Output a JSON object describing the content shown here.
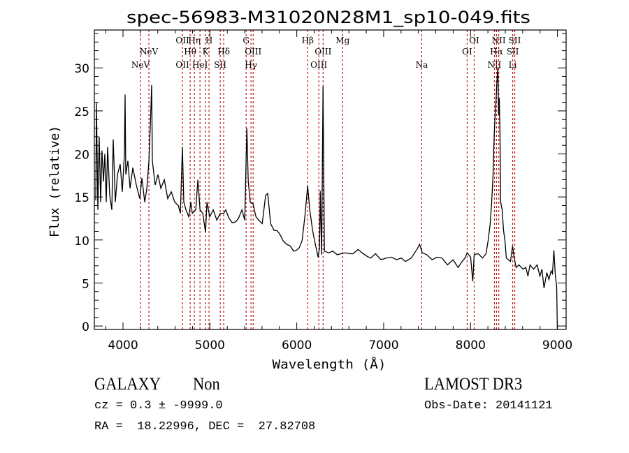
{
  "chart_data": {
    "type": "line",
    "title": "spec-56983-M31020N28M1_sp10-049.fits",
    "xlabel": "Wavelength (Å)",
    "ylabel": "Flux (relative)",
    "xlim": [
      3670,
      9100
    ],
    "ylim": [
      -0.4,
      34.4
    ],
    "xticks": [
      4000,
      5000,
      6000,
      7000,
      8000,
      9000
    ],
    "yticks": [
      0,
      5,
      10,
      15,
      20,
      25,
      30
    ],
    "x_minor_step": 200,
    "y_minor_step": 1,
    "grid": false,
    "line_color": "#000000",
    "marker_color": "#c01818",
    "spectrum": [
      [
        3686,
        14.6
      ],
      [
        3694,
        25.9
      ],
      [
        3710,
        13.5
      ],
      [
        3726,
        22.0
      ],
      [
        3742,
        14.4
      ],
      [
        3758,
        20.4
      ],
      [
        3775,
        16.8
      ],
      [
        3791,
        20.0
      ],
      [
        3807,
        14.4
      ],
      [
        3823,
        20.8
      ],
      [
        3847,
        15.2
      ],
      [
        3871,
        13.5
      ],
      [
        3887,
        21.7
      ],
      [
        3911,
        14.4
      ],
      [
        3936,
        17.6
      ],
      [
        3968,
        18.8
      ],
      [
        3992,
        15.6
      ],
      [
        4016,
        20.0
      ],
      [
        4024,
        26.9
      ],
      [
        4032,
        17.6
      ],
      [
        4056,
        19.2
      ],
      [
        4081,
        16.0
      ],
      [
        4113,
        18.4
      ],
      [
        4153,
        16.4
      ],
      [
        4193,
        14.8
      ],
      [
        4217,
        17.2
      ],
      [
        4250,
        14.4
      ],
      [
        4274,
        16.0
      ],
      [
        4298,
        19.2
      ],
      [
        4314,
        23.3
      ],
      [
        4330,
        28.0
      ],
      [
        4338,
        19.2
      ],
      [
        4370,
        16.4
      ],
      [
        4403,
        17.6
      ],
      [
        4435,
        16.0
      ],
      [
        4475,
        17.0
      ],
      [
        4515,
        14.8
      ],
      [
        4555,
        15.6
      ],
      [
        4596,
        14.4
      ],
      [
        4636,
        14.0
      ],
      [
        4660,
        13.1
      ],
      [
        4684,
        20.8
      ],
      [
        4700,
        14.4
      ],
      [
        4725,
        13.5
      ],
      [
        4757,
        12.7
      ],
      [
        4781,
        14.4
      ],
      [
        4797,
        13.1
      ],
      [
        4837,
        13.5
      ],
      [
        4861,
        17.0
      ],
      [
        4886,
        13.5
      ],
      [
        4918,
        13.1
      ],
      [
        4950,
        10.9
      ],
      [
        4966,
        14.4
      ],
      [
        4998,
        12.7
      ],
      [
        5038,
        13.5
      ],
      [
        5079,
        12.3
      ],
      [
        5119,
        13.1
      ],
      [
        5159,
        13.1
      ],
      [
        5183,
        13.5
      ],
      [
        5216,
        12.6
      ],
      [
        5256,
        12.0
      ],
      [
        5296,
        12.1
      ],
      [
        5328,
        12.5
      ],
      [
        5369,
        13.5
      ],
      [
        5401,
        12.3
      ],
      [
        5425,
        23.0
      ],
      [
        5441,
        16.8
      ],
      [
        5465,
        14.4
      ],
      [
        5497,
        14.2
      ],
      [
        5530,
        12.7
      ],
      [
        5562,
        12.3
      ],
      [
        5602,
        11.9
      ],
      [
        5642,
        15.2
      ],
      [
        5666,
        15.4
      ],
      [
        5699,
        11.9
      ],
      [
        5739,
        11.1
      ],
      [
        5771,
        11.1
      ],
      [
        5803,
        10.7
      ],
      [
        5843,
        9.9
      ],
      [
        5884,
        9.5
      ],
      [
        5924,
        9.3
      ],
      [
        5964,
        8.7
      ],
      [
        5996,
        8.8
      ],
      [
        6029,
        9.1
      ],
      [
        6061,
        9.9
      ],
      [
        6093,
        12.7
      ],
      [
        6125,
        16.3
      ],
      [
        6149,
        13.5
      ],
      [
        6182,
        11.1
      ],
      [
        6214,
        9.5
      ],
      [
        6246,
        8.0
      ],
      [
        6262,
        9.1
      ],
      [
        6270,
        15.7
      ],
      [
        6286,
        8.3
      ],
      [
        6302,
        27.9
      ],
      [
        6318,
        8.7
      ],
      [
        6367,
        8.5
      ],
      [
        6415,
        8.7
      ],
      [
        6463,
        8.3
      ],
      [
        6512,
        8.4
      ],
      [
        6560,
        8.5
      ],
      [
        6608,
        8.4
      ],
      [
        6648,
        8.4
      ],
      [
        6705,
        8.9
      ],
      [
        6753,
        8.5
      ],
      [
        6809,
        8.1
      ],
      [
        6850,
        7.9
      ],
      [
        6906,
        8.4
      ],
      [
        6970,
        7.7
      ],
      [
        7027,
        7.9
      ],
      [
        7091,
        8.0
      ],
      [
        7148,
        7.7
      ],
      [
        7204,
        7.9
      ],
      [
        7252,
        7.5
      ],
      [
        7317,
        7.9
      ],
      [
        7357,
        8.5
      ],
      [
        7389,
        9.0
      ],
      [
        7413,
        9.5
      ],
      [
        7445,
        8.5
      ],
      [
        7494,
        8.3
      ],
      [
        7558,
        7.7
      ],
      [
        7614,
        8.0
      ],
      [
        7671,
        7.9
      ],
      [
        7735,
        7.1
      ],
      [
        7799,
        7.7
      ],
      [
        7856,
        6.8
      ],
      [
        7896,
        7.4
      ],
      [
        7936,
        7.9
      ],
      [
        7961,
        8.5
      ],
      [
        8001,
        8.0
      ],
      [
        8025,
        5.2
      ],
      [
        8042,
        8.3
      ],
      [
        8089,
        8.4
      ],
      [
        8138,
        7.9
      ],
      [
        8178,
        8.4
      ],
      [
        8202,
        9.9
      ],
      [
        8226,
        11.9
      ],
      [
        8243,
        14.4
      ],
      [
        8259,
        17.6
      ],
      [
        8267,
        20.6
      ],
      [
        8275,
        22.7
      ],
      [
        8283,
        24.5
      ],
      [
        8291,
        25.7
      ],
      [
        8299,
        27.3
      ],
      [
        8307,
        29.0
      ],
      [
        8315,
        30.0
      ],
      [
        8323,
        24.5
      ],
      [
        8331,
        26.5
      ],
      [
        8339,
        22.5
      ],
      [
        8347,
        14.4
      ],
      [
        8364,
        13.5
      ],
      [
        8380,
        11.1
      ],
      [
        8396,
        9.9
      ],
      [
        8412,
        7.9
      ],
      [
        8436,
        7.7
      ],
      [
        8460,
        7.5
      ],
      [
        8485,
        9.3
      ],
      [
        8501,
        8.0
      ],
      [
        8525,
        6.8
      ],
      [
        8557,
        7.1
      ],
      [
        8605,
        6.6
      ],
      [
        8637,
        6.8
      ],
      [
        8661,
        5.8
      ],
      [
        8685,
        7.1
      ],
      [
        8725,
        6.6
      ],
      [
        8766,
        7.1
      ],
      [
        8798,
        5.8
      ],
      [
        8822,
        6.6
      ],
      [
        8846,
        4.4
      ],
      [
        8878,
        6.2
      ],
      [
        8902,
        5.4
      ],
      [
        8927,
        6.4
      ],
      [
        8943,
        6.1
      ],
      [
        8959,
        8.8
      ],
      [
        8975,
        6.0
      ],
      [
        8991,
        4.6
      ],
      [
        8999,
        0.0
      ]
    ],
    "line_markers": [
      {
        "label": "NeV",
        "wavelength": 4201,
        "row": 3
      },
      {
        "label": "NeV",
        "wavelength": 4298,
        "row": 2
      },
      {
        "label": "OII",
        "wavelength": 4684,
        "row": 1
      },
      {
        "label": "OII",
        "wavelength": 4684,
        "row": 3
      },
      {
        "label": "Hθ",
        "wavelength": 4773,
        "row": 2
      },
      {
        "label": "Hη",
        "wavelength": 4821,
        "row": 1
      },
      {
        "label": "HeI",
        "wavelength": 4886,
        "row": 3
      },
      {
        "label": "K",
        "wavelength": 4950,
        "row": 2
      },
      {
        "label": "H",
        "wavelength": 4990,
        "row": 1
      },
      {
        "label": "SII",
        "wavelength": 5119,
        "row": 3
      },
      {
        "label": "Hδ",
        "wavelength": 5159,
        "row": 2
      },
      {
        "label": "G",
        "wavelength": 5417,
        "row": 1
      },
      {
        "label": "Hγ",
        "wavelength": 5473,
        "row": 3
      },
      {
        "label": "OIII",
        "wavelength": 5498,
        "row": 2
      },
      {
        "label": "Hβ",
        "wavelength": 6126,
        "row": 1
      },
      {
        "label": "OIII",
        "wavelength": 6254,
        "row": 3
      },
      {
        "label": "OIII",
        "wavelength": 6303,
        "row": 2
      },
      {
        "label": "Mg",
        "wavelength": 6528,
        "row": 1
      },
      {
        "label": "Na",
        "wavelength": 7438,
        "row": 3
      },
      {
        "label": "OI",
        "wavelength": 7961,
        "row": 2
      },
      {
        "label": "OI",
        "wavelength": 8042,
        "row": 1
      },
      {
        "label": "NII",
        "wavelength": 8275,
        "row": 3
      },
      {
        "label": "Hα",
        "wavelength": 8299,
        "row": 2
      },
      {
        "label": "NII",
        "wavelength": 8325,
        "row": 1
      },
      {
        "label": "Li",
        "wavelength": 8485,
        "row": 3
      },
      {
        "label": "SII",
        "wavelength": 8485,
        "row": 2
      },
      {
        "label": "SII",
        "wavelength": 8509,
        "row": 1
      }
    ]
  },
  "info": {
    "class": "GALAXY",
    "subclass": "Non",
    "survey": "LAMOST DR3",
    "cz": "cz = 0.3 ± -9999.0",
    "obs_date": "Obs-Date: 20141121",
    "coords": "RA =  18.22996, DEC =  27.82708"
  }
}
